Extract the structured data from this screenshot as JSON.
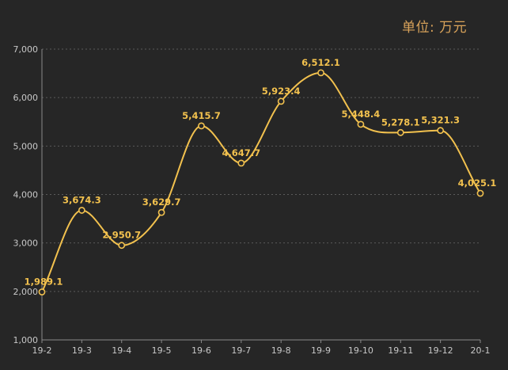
{
  "unit_label": "单位: 万元",
  "colors": {
    "background": "#262626",
    "line": "#f2c14e",
    "grid": "#5a5a5a",
    "axis_text": "#c8c8c8",
    "unit_text": "#d9a35a"
  },
  "chart_data": {
    "type": "line",
    "categories": [
      "19-2",
      "19-3",
      "19-4",
      "19-5",
      "19-6",
      "19-7",
      "19-8",
      "19-9",
      "19-10",
      "19-11",
      "19-12",
      "20-1"
    ],
    "series": [
      {
        "values": [
          1989.1,
          3674.3,
          2950.7,
          3629.7,
          5415.7,
          4647.7,
          5923.4,
          6512.1,
          5448.4,
          5278.1,
          5321.3,
          4025.1
        ]
      }
    ],
    "data_labels": [
      "1,989.1",
      "3,674.3",
      "2,950.7",
      "3,629.7",
      "5,415.7",
      "4,647.7",
      "5,923.4",
      "6,512.1",
      "5,448.4",
      "5,278.1",
      "5,321.3",
      "4,025.1"
    ],
    "yticks": [
      "1,000",
      "2,000",
      "3,000",
      "4,000",
      "5,000",
      "6,000",
      "7,000"
    ],
    "ytick_values": [
      1000,
      2000,
      3000,
      4000,
      5000,
      6000,
      7000
    ],
    "ylim": [
      1000,
      7000
    ],
    "grid": true,
    "smooth": true,
    "markers": "hollow-circle"
  }
}
